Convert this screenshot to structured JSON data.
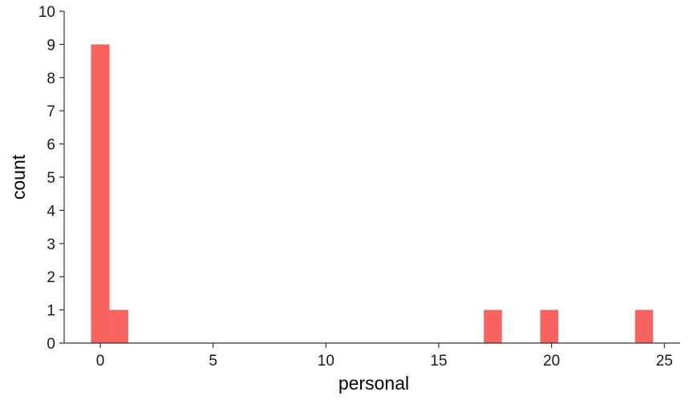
{
  "chart_data": {
    "type": "bar",
    "subtype": "histogram",
    "xlabel": "personal",
    "ylabel": "count",
    "xlim": [
      -1.6,
      25.7
    ],
    "ylim": [
      0,
      10
    ],
    "x_ticks": [
      0,
      5,
      10,
      15,
      20,
      25
    ],
    "y_ticks": [
      0,
      1,
      2,
      3,
      4,
      5,
      6,
      7,
      8,
      9,
      10
    ],
    "bin_width": 0.83,
    "bins": [
      {
        "x0": -0.41,
        "x1": 0.41,
        "count": 9
      },
      {
        "x0": 0.41,
        "x1": 1.24,
        "count": 1
      },
      {
        "x0": 17.0,
        "x1": 17.8,
        "count": 1
      },
      {
        "x0": 19.5,
        "x1": 20.3,
        "count": 1
      },
      {
        "x0": 23.7,
        "x1": 24.5,
        "count": 1
      }
    ],
    "bar_color": "#f8625f",
    "grid": false,
    "legend": "none"
  }
}
